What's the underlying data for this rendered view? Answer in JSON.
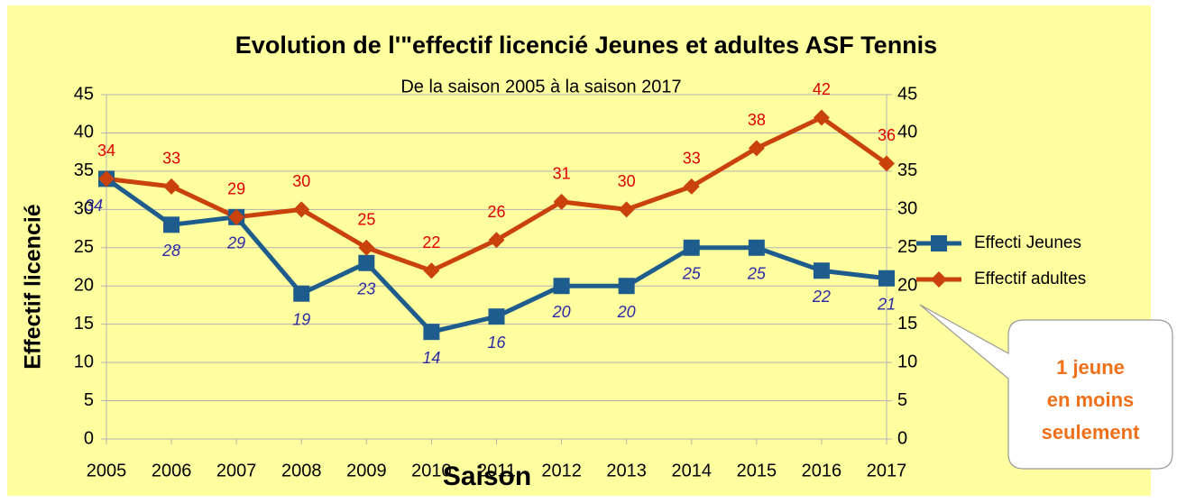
{
  "chart_data": {
    "type": "line",
    "title": "Evolution de l'\"effectif licencié Jeunes et adultes ASF Tennis",
    "subtitle": "De la saison 2005 à  la saison 2017",
    "x_label": "Saison",
    "y_label": "Effectif licencié",
    "categories": [
      "2005",
      "2006",
      "2007",
      "2008",
      "2009",
      "2010",
      "2011",
      "2012",
      "2013",
      "2014",
      "2015",
      "2016",
      "2017"
    ],
    "series": [
      {
        "name": "Effecti Jeunes",
        "color": "#1f5c8e",
        "marker": "square",
        "values": [
          34,
          28,
          29,
          19,
          23,
          14,
          16,
          20,
          20,
          25,
          25,
          22,
          21
        ]
      },
      {
        "name": "Effectif adultes",
        "color": "#c9420c",
        "marker": "diamond",
        "values": [
          34,
          33,
          29,
          30,
          25,
          22,
          26,
          31,
          30,
          33,
          38,
          42,
          36
        ]
      }
    ],
    "ylim": [
      0,
      45
    ],
    "yticks": [
      0,
      5,
      10,
      15,
      20,
      25,
      30,
      35,
      40,
      45
    ],
    "y2lim": [
      0,
      45
    ],
    "y2ticks": [
      0,
      5,
      10,
      15,
      20,
      25,
      30,
      35,
      40,
      45
    ],
    "grid": true,
    "legend": "right",
    "annotation": [
      "1 jeune",
      "en moins",
      "seulement"
    ]
  }
}
